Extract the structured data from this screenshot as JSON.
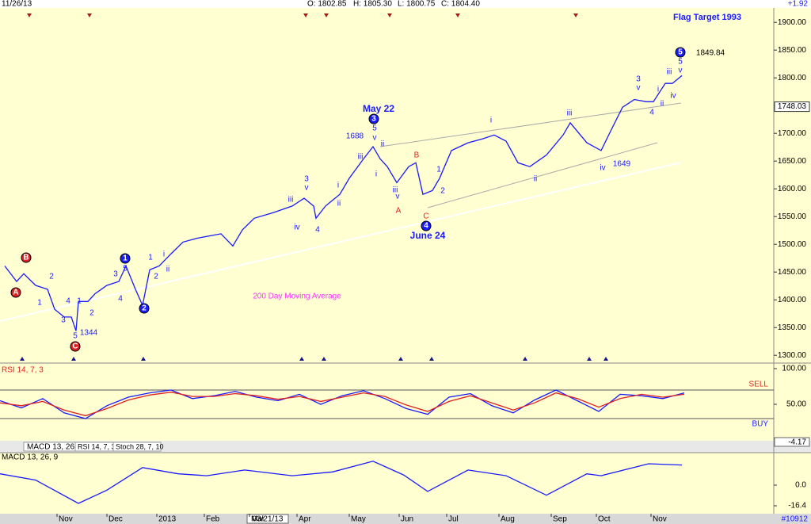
{
  "header": {
    "date": "11/26/13",
    "open": "O: 1802.85",
    "high": "H: 1805.30",
    "low": "L: 1800.75",
    "close": "C: 1804.40",
    "change": "+1.92",
    "cursor_date": "03/21/13",
    "tabs": [
      "MACD 13, 26, 9",
      "RSI 14, 7, 3",
      "Stoch 28, 7, 10"
    ],
    "id": "#10912"
  },
  "chart_data": [
    {
      "type": "line",
      "x": [
        2,
        7,
        10,
        15,
        20,
        23,
        27,
        30,
        32,
        33,
        37,
        40,
        45,
        50,
        53,
        57,
        60,
        63,
        67,
        72,
        77,
        83,
        93,
        98,
        102,
        107,
        115,
        123,
        128,
        132,
        133,
        137,
        143,
        147,
        153,
        157,
        160,
        163,
        167,
        172,
        175,
        178,
        182,
        185,
        190,
        197,
        203,
        208,
        213,
        218,
        223,
        230,
        237,
        240,
        247,
        253,
        257,
        262,
        267,
        272,
        275,
        280,
        283,
        287
      ],
      "values": [
        1461,
        1433,
        1447,
        1426,
        1419,
        1383,
        1369,
        1369,
        1344,
        1397,
        1397,
        1411,
        1426,
        1433,
        1461,
        1419,
        1390,
        1454,
        1461,
        1483,
        1504,
        1511,
        1519,
        1497,
        1526,
        1547,
        1557,
        1569,
        1583,
        1569,
        1547,
        1569,
        1590,
        1619,
        1654,
        1676,
        1654,
        1640,
        1611,
        1640,
        1647,
        1590,
        1597,
        1619,
        1669,
        1683,
        1690,
        1697,
        1686,
        1647,
        1640,
        1661,
        1697,
        1719,
        1683,
        1669,
        1704,
        1747,
        1761,
        1757,
        1757,
        1790,
        1790,
        1804
      ],
      "color": "#1a1aff",
      "xlim": [
        0,
        325
      ],
      "xticks": [
        {
          "value": 24,
          "label": "Nov"
        },
        {
          "value": 45,
          "label": "Dec"
        },
        {
          "value": 66,
          "label": "2013"
        },
        {
          "value": 86,
          "label": "Feb"
        },
        {
          "value": 105,
          "label": "Mar"
        },
        {
          "value": 125,
          "label": "Apr"
        },
        {
          "value": 147,
          "label": "May"
        },
        {
          "value": 168,
          "label": "Jun"
        },
        {
          "value": 188,
          "label": "Jul"
        },
        {
          "value": 210,
          "label": "Aug"
        },
        {
          "value": 232,
          "label": "Sep"
        },
        {
          "value": 251,
          "label": "Oct"
        },
        {
          "value": 274,
          "label": "Nov"
        }
      ],
      "ylim": [
        1286,
        1926
      ],
      "yticks": [
        {
          "value": 1300,
          "label": "1300.00"
        },
        {
          "value": 1350,
          "label": "1350.00"
        },
        {
          "value": 1400,
          "label": "1400.00"
        },
        {
          "value": 1450,
          "label": "1450.00"
        },
        {
          "value": 1500,
          "label": "1500.00"
        },
        {
          "value": 1550,
          "label": "1550.00"
        },
        {
          "value": 1600,
          "label": "1600.00"
        },
        {
          "value": 1650,
          "label": "1650.00"
        },
        {
          "value": 1700,
          "label": "1700.00"
        },
        {
          "value": 1750,
          "label": "1750.00"
        },
        {
          "value": 1800,
          "label": "1800.00"
        },
        {
          "value": 1850,
          "label": "1850.00"
        },
        {
          "value": 1900,
          "label": "1900.00"
        }
      ],
      "last_value": 1748.03,
      "annotations": [
        "Flag Target 1993",
        "1849.84",
        "May 22",
        "1688",
        "June 24",
        "1649",
        "1344",
        "200 Day Moving Average",
        "B",
        "A",
        "C",
        "1",
        "2",
        "3",
        "4",
        "5",
        "1",
        "2",
        "3",
        "4",
        "5",
        "1",
        "2",
        "3",
        "4",
        "5",
        "1",
        "2",
        "i",
        "ii",
        "3",
        "v",
        "iii",
        "iv",
        "4",
        "i",
        "ii",
        "iii",
        "5",
        "v",
        "ii",
        "i",
        "iii",
        "v",
        "A",
        "B",
        "C",
        "1",
        "2",
        "i",
        "ii",
        "iii",
        "iv",
        "3",
        "v",
        "4",
        "i",
        "ii",
        "iii",
        "iv",
        "5",
        "v"
      ]
    },
    {
      "type": "line",
      "title": "RSI 14, 7, 3",
      "x": [
        0,
        9,
        18,
        27,
        36,
        45,
        54,
        63,
        72,
        81,
        90,
        99,
        108,
        117,
        126,
        135,
        144,
        153,
        162,
        171,
        180,
        189,
        198,
        207,
        216,
        225,
        234,
        243,
        252,
        261,
        270,
        279,
        288
      ],
      "series": [
        {
          "color": "#1a1aff",
          "values": [
            55,
            45,
            58,
            38,
            30,
            48,
            60,
            66,
            70,
            58,
            62,
            68,
            60,
            55,
            64,
            50,
            62,
            69,
            58,
            44,
            36,
            60,
            65,
            48,
            38,
            56,
            70,
            55,
            40,
            64,
            62,
            58,
            66
          ]
        },
        {
          "color": "#e02020",
          "values": [
            52,
            48,
            54,
            42,
            34,
            44,
            56,
            63,
            67,
            61,
            61,
            65,
            62,
            57,
            61,
            54,
            60,
            66,
            61,
            49,
            40,
            54,
            62,
            52,
            42,
            52,
            66,
            58,
            46,
            58,
            64,
            60,
            64
          ]
        }
      ],
      "ylim": [
        0,
        100
      ],
      "yticks": [
        {
          "value": 100,
          "label": "100.00"
        },
        {
          "value": 50,
          "label": "50.00"
        }
      ],
      "levels": [
        70,
        30
      ],
      "level_labels": [
        "SELL",
        "BUY"
      ],
      "cursor_value": -4.17
    },
    {
      "type": "line",
      "title": "MACD 13, 26, 9",
      "x": [
        0,
        15,
        33,
        45,
        60,
        75,
        87,
        103,
        123,
        140,
        157,
        170,
        180,
        197,
        213,
        230,
        247,
        253,
        273,
        287
      ],
      "values": [
        9,
        4,
        -14.5,
        -4,
        14,
        9,
        7.5,
        12,
        7.5,
        10.5,
        19,
        8,
        -5,
        12,
        7.5,
        -8,
        9,
        7.5,
        17,
        16
      ],
      "color": "#1a1aff",
      "ylim": [
        -22.7,
        23.3
      ],
      "yticks": [
        {
          "value": 0,
          "label": "0.0"
        },
        {
          "value": -16.4,
          "label": "-16.4"
        }
      ]
    }
  ]
}
